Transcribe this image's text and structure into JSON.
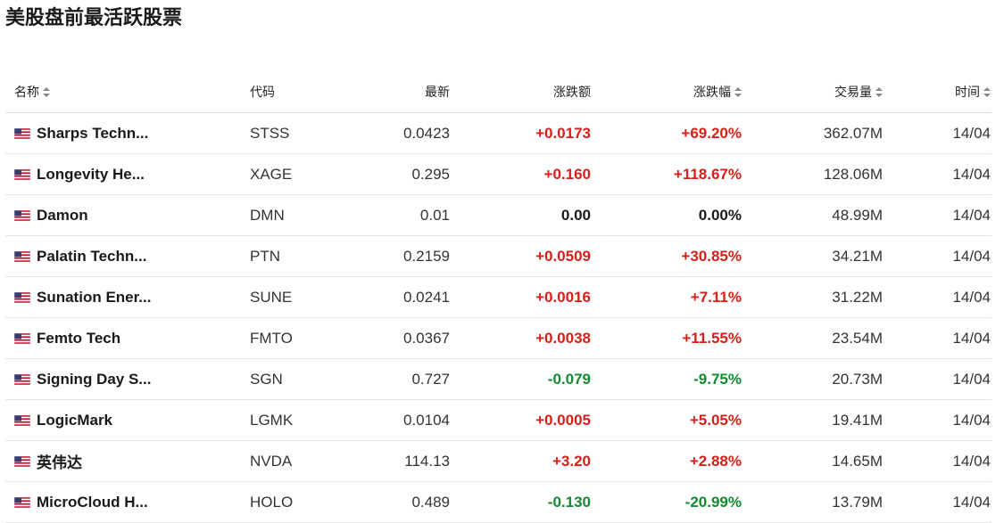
{
  "page": {
    "title": "美股盘前最活跃股票"
  },
  "colors": {
    "up": "#d91e18",
    "down": "#128a2f",
    "neutral": "#1a1a1a"
  },
  "table": {
    "headers": {
      "name": "名称",
      "code": "代码",
      "last": "最新",
      "change": "涨跌额",
      "change_pct": "涨跌幅",
      "volume": "交易量",
      "time": "时间"
    },
    "sortable_columns": [
      "name",
      "change_pct",
      "volume",
      "time"
    ],
    "rows": [
      {
        "flag": "us-flag-icon",
        "name": "Sharps Techn...",
        "code": "STSS",
        "last": "0.0423",
        "change": "+0.0173",
        "change_pct": "+69.20%",
        "volume": "362.07M",
        "time": "14/04",
        "direction": "up"
      },
      {
        "flag": "us-flag-icon",
        "name": "Longevity He...",
        "code": "XAGE",
        "last": "0.295",
        "change": "+0.160",
        "change_pct": "+118.67%",
        "volume": "128.06M",
        "time": "14/04",
        "direction": "up"
      },
      {
        "flag": "us-flag-icon",
        "name": "Damon",
        "code": "DMN",
        "last": "0.01",
        "change": "0.00",
        "change_pct": "0.00%",
        "volume": "48.99M",
        "time": "14/04",
        "direction": "flat"
      },
      {
        "flag": "us-flag-icon",
        "name": "Palatin Techn...",
        "code": "PTN",
        "last": "0.2159",
        "change": "+0.0509",
        "change_pct": "+30.85%",
        "volume": "34.21M",
        "time": "14/04",
        "direction": "up"
      },
      {
        "flag": "us-flag-icon",
        "name": "Sunation Ener...",
        "code": "SUNE",
        "last": "0.0241",
        "change": "+0.0016",
        "change_pct": "+7.11%",
        "volume": "31.22M",
        "time": "14/04",
        "direction": "up"
      },
      {
        "flag": "us-flag-icon",
        "name": "Femto Tech",
        "code": "FMTO",
        "last": "0.0367",
        "change": "+0.0038",
        "change_pct": "+11.55%",
        "volume": "23.54M",
        "time": "14/04",
        "direction": "up"
      },
      {
        "flag": "us-flag-icon",
        "name": "Signing Day S...",
        "code": "SGN",
        "last": "0.727",
        "change": "-0.079",
        "change_pct": "-9.75%",
        "volume": "20.73M",
        "time": "14/04",
        "direction": "down"
      },
      {
        "flag": "us-flag-icon",
        "name": "LogicMark",
        "code": "LGMK",
        "last": "0.0104",
        "change": "+0.0005",
        "change_pct": "+5.05%",
        "volume": "19.41M",
        "time": "14/04",
        "direction": "up"
      },
      {
        "flag": "us-flag-icon",
        "name": "英伟达",
        "code": "NVDA",
        "last": "114.13",
        "change": "+3.20",
        "change_pct": "+2.88%",
        "volume": "14.65M",
        "time": "14/04",
        "direction": "up"
      },
      {
        "flag": "us-flag-icon",
        "name": "MicroCloud H...",
        "code": "HOLO",
        "last": "0.489",
        "change": "-0.130",
        "change_pct": "-20.99%",
        "volume": "13.79M",
        "time": "14/04",
        "direction": "down"
      }
    ]
  }
}
